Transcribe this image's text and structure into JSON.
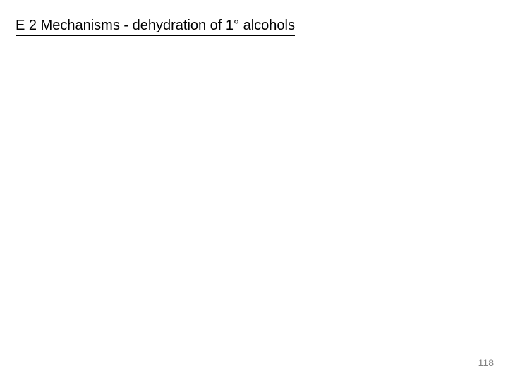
{
  "slide": {
    "title_prefix": "E 2 Mechanisms -  dehydration of 1",
    "title_degree": "°",
    "title_suffix": " alcohols",
    "page_number": "118",
    "title_fontsize": 20,
    "title_color": "#000000",
    "page_number_fontsize": 14,
    "page_number_color": "#808080",
    "background_color": "#ffffff"
  }
}
